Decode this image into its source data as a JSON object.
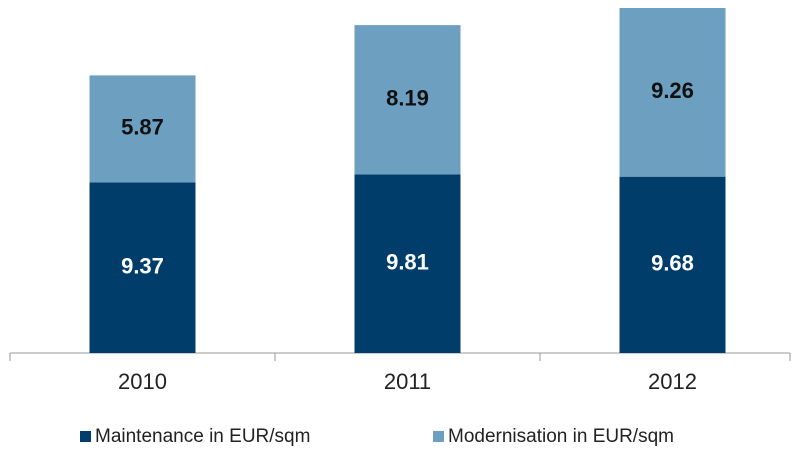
{
  "chart_data": {
    "type": "bar",
    "stacked": true,
    "categories": [
      "2010",
      "2011",
      "2012"
    ],
    "series": [
      {
        "name": "Maintenance in EUR/sqm",
        "color": "#003d6b",
        "values": [
          9.37,
          9.81,
          9.68
        ]
      },
      {
        "name": "Modernisation in EUR/sqm",
        "color": "#6c9fc0",
        "values": [
          5.87,
          8.19,
          9.26
        ]
      }
    ],
    "legend": "bottom"
  }
}
